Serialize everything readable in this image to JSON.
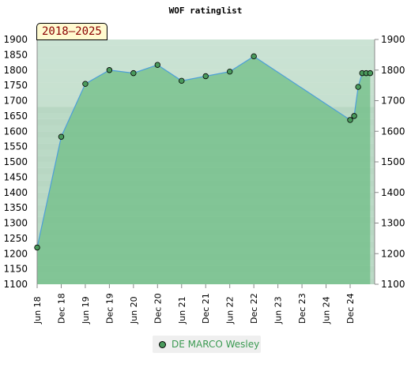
{
  "chart_data": {
    "type": "area",
    "title": "WOF ratinglist",
    "period": "2018–2025",
    "ylim": [
      1100,
      1900
    ],
    "yticks": [
      1100,
      1150,
      1200,
      1250,
      1300,
      1350,
      1400,
      1450,
      1500,
      1550,
      1600,
      1650,
      1700,
      1750,
      1800,
      1850,
      1900
    ],
    "yticks_right": [
      1100,
      1200,
      1300,
      1400,
      1500,
      1600,
      1700,
      1800,
      1900
    ],
    "xticks": [
      "Jun 18",
      "Dec 18",
      "Jun 19",
      "Dec 19",
      "Jun 20",
      "Dec 20",
      "Jun 21",
      "Dec 21",
      "Jun 22",
      "Dec 22",
      "Jun 23",
      "Dec 23",
      "Jun 24",
      "Dec 24"
    ],
    "grid": true,
    "legend_position": "bottom-center",
    "series": [
      {
        "name": "DE MARCO Wesley",
        "color": "#4a9a5c",
        "line_color": "#4d9fd8",
        "points": [
          {
            "x": "2018-06",
            "y": 1220
          },
          {
            "x": "2018-12",
            "y": 1582
          },
          {
            "x": "2019-06",
            "y": 1755
          },
          {
            "x": "2019-12",
            "y": 1800
          },
          {
            "x": "2020-06",
            "y": 1790
          },
          {
            "x": "2020-12",
            "y": 1817
          },
          {
            "x": "2021-06",
            "y": 1765
          },
          {
            "x": "2021-12",
            "y": 1780
          },
          {
            "x": "2022-06",
            "y": 1795
          },
          {
            "x": "2022-12",
            "y": 1845
          },
          {
            "x": "2024-12",
            "y": 1637
          },
          {
            "x": "2025-01",
            "y": 1650
          },
          {
            "x": "2025-02",
            "y": 1745
          },
          {
            "x": "2025-03",
            "y": 1790
          },
          {
            "x": "2025-04",
            "y": 1790
          },
          {
            "x": "2025-05",
            "y": 1790
          }
        ]
      }
    ]
  }
}
